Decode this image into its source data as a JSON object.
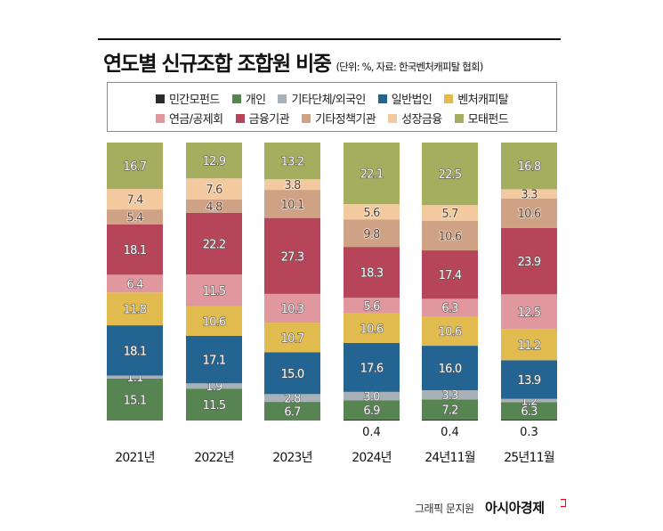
{
  "title": "연도별 신규조합 조합원 비중",
  "subtitle": "(단위: %, 자료: 한국벤처캐피탈 협회)",
  "credit": "그래픽 문지원",
  "brand": "아시아경제",
  "chart_data": {
    "type": "bar",
    "stacked": true,
    "categories": [
      "2021년",
      "2022년",
      "2023년",
      "2024년",
      "24년11월",
      "25년11월"
    ],
    "ylim": [
      0,
      100
    ],
    "legend_position": "top",
    "series": [
      {
        "name": "민간모펀드",
        "color": "#2b2b2b",
        "values": [
          0,
          0,
          0,
          0.4,
          0.4,
          0.3
        ]
      },
      {
        "name": "개인",
        "color": "#578552",
        "values": [
          15.1,
          11.5,
          6.7,
          6.9,
          7.2,
          6.3
        ]
      },
      {
        "name": "기타단체/외국인",
        "color": "#a8b1b8",
        "values": [
          1.1,
          1.9,
          2.8,
          3.0,
          3.3,
          1.2
        ]
      },
      {
        "name": "일반법인",
        "color": "#236493",
        "values": [
          18.1,
          17.1,
          15.0,
          17.6,
          16.0,
          13.9
        ]
      },
      {
        "name": "벤처캐피탈",
        "color": "#e2bb4f",
        "values": [
          11.8,
          10.6,
          10.7,
          10.6,
          10.6,
          11.2
        ]
      },
      {
        "name": "연금/공제회",
        "color": "#e0979d",
        "values": [
          6.4,
          11.5,
          10.3,
          5.6,
          6.3,
          12.5
        ]
      },
      {
        "name": "금융기관",
        "color": "#b64559",
        "values": [
          18.1,
          22.2,
          27.3,
          18.3,
          17.4,
          23.9
        ]
      },
      {
        "name": "기타정책기관",
        "color": "#cfa185",
        "values": [
          5.4,
          4.8,
          10.1,
          9.8,
          10.6,
          10.6
        ]
      },
      {
        "name": "성장금융",
        "color": "#f3c9a0",
        "values": [
          7.4,
          7.6,
          3.8,
          5.6,
          5.7,
          3.3
        ]
      },
      {
        "name": "모태펀드",
        "color": "#a4ae5e",
        "values": [
          16.7,
          12.9,
          13.2,
          22.1,
          22.5,
          16.8
        ]
      }
    ]
  }
}
